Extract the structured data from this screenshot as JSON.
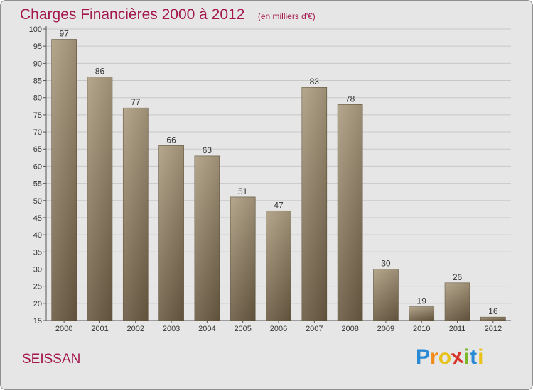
{
  "title": "Charges Financières 2000 à 2012",
  "unit_note": "(en milliers d'€)",
  "location": "SEISSAN",
  "brand": {
    "letters": [
      "P",
      "r",
      "o",
      "x",
      "i",
      "t",
      "i"
    ],
    "colors": [
      "#2a8ad6",
      "#f08c1a",
      "#e8c21a",
      "#d8342a",
      "#7ab82a",
      "#2a8ad6",
      "#e8c21a"
    ]
  },
  "colors": {
    "accent": "#a3174d",
    "bar_light": "#ad9d81",
    "bar_dark": "#6a5a42",
    "grid": "#c8c8c8"
  },
  "chart_data": {
    "type": "bar",
    "categories": [
      "2000",
      "2001",
      "2002",
      "2003",
      "2004",
      "2005",
      "2006",
      "2007",
      "2008",
      "2009",
      "2010",
      "2011",
      "2012"
    ],
    "values": [
      97,
      86,
      77,
      66,
      63,
      51,
      47,
      83,
      78,
      30,
      19,
      26,
      16
    ],
    "yticks": [
      15,
      20,
      25,
      30,
      35,
      40,
      45,
      50,
      55,
      60,
      65,
      70,
      75,
      80,
      85,
      90,
      95,
      100
    ],
    "ylim": [
      15,
      100
    ],
    "grid": true,
    "show_value_labels": true
  }
}
